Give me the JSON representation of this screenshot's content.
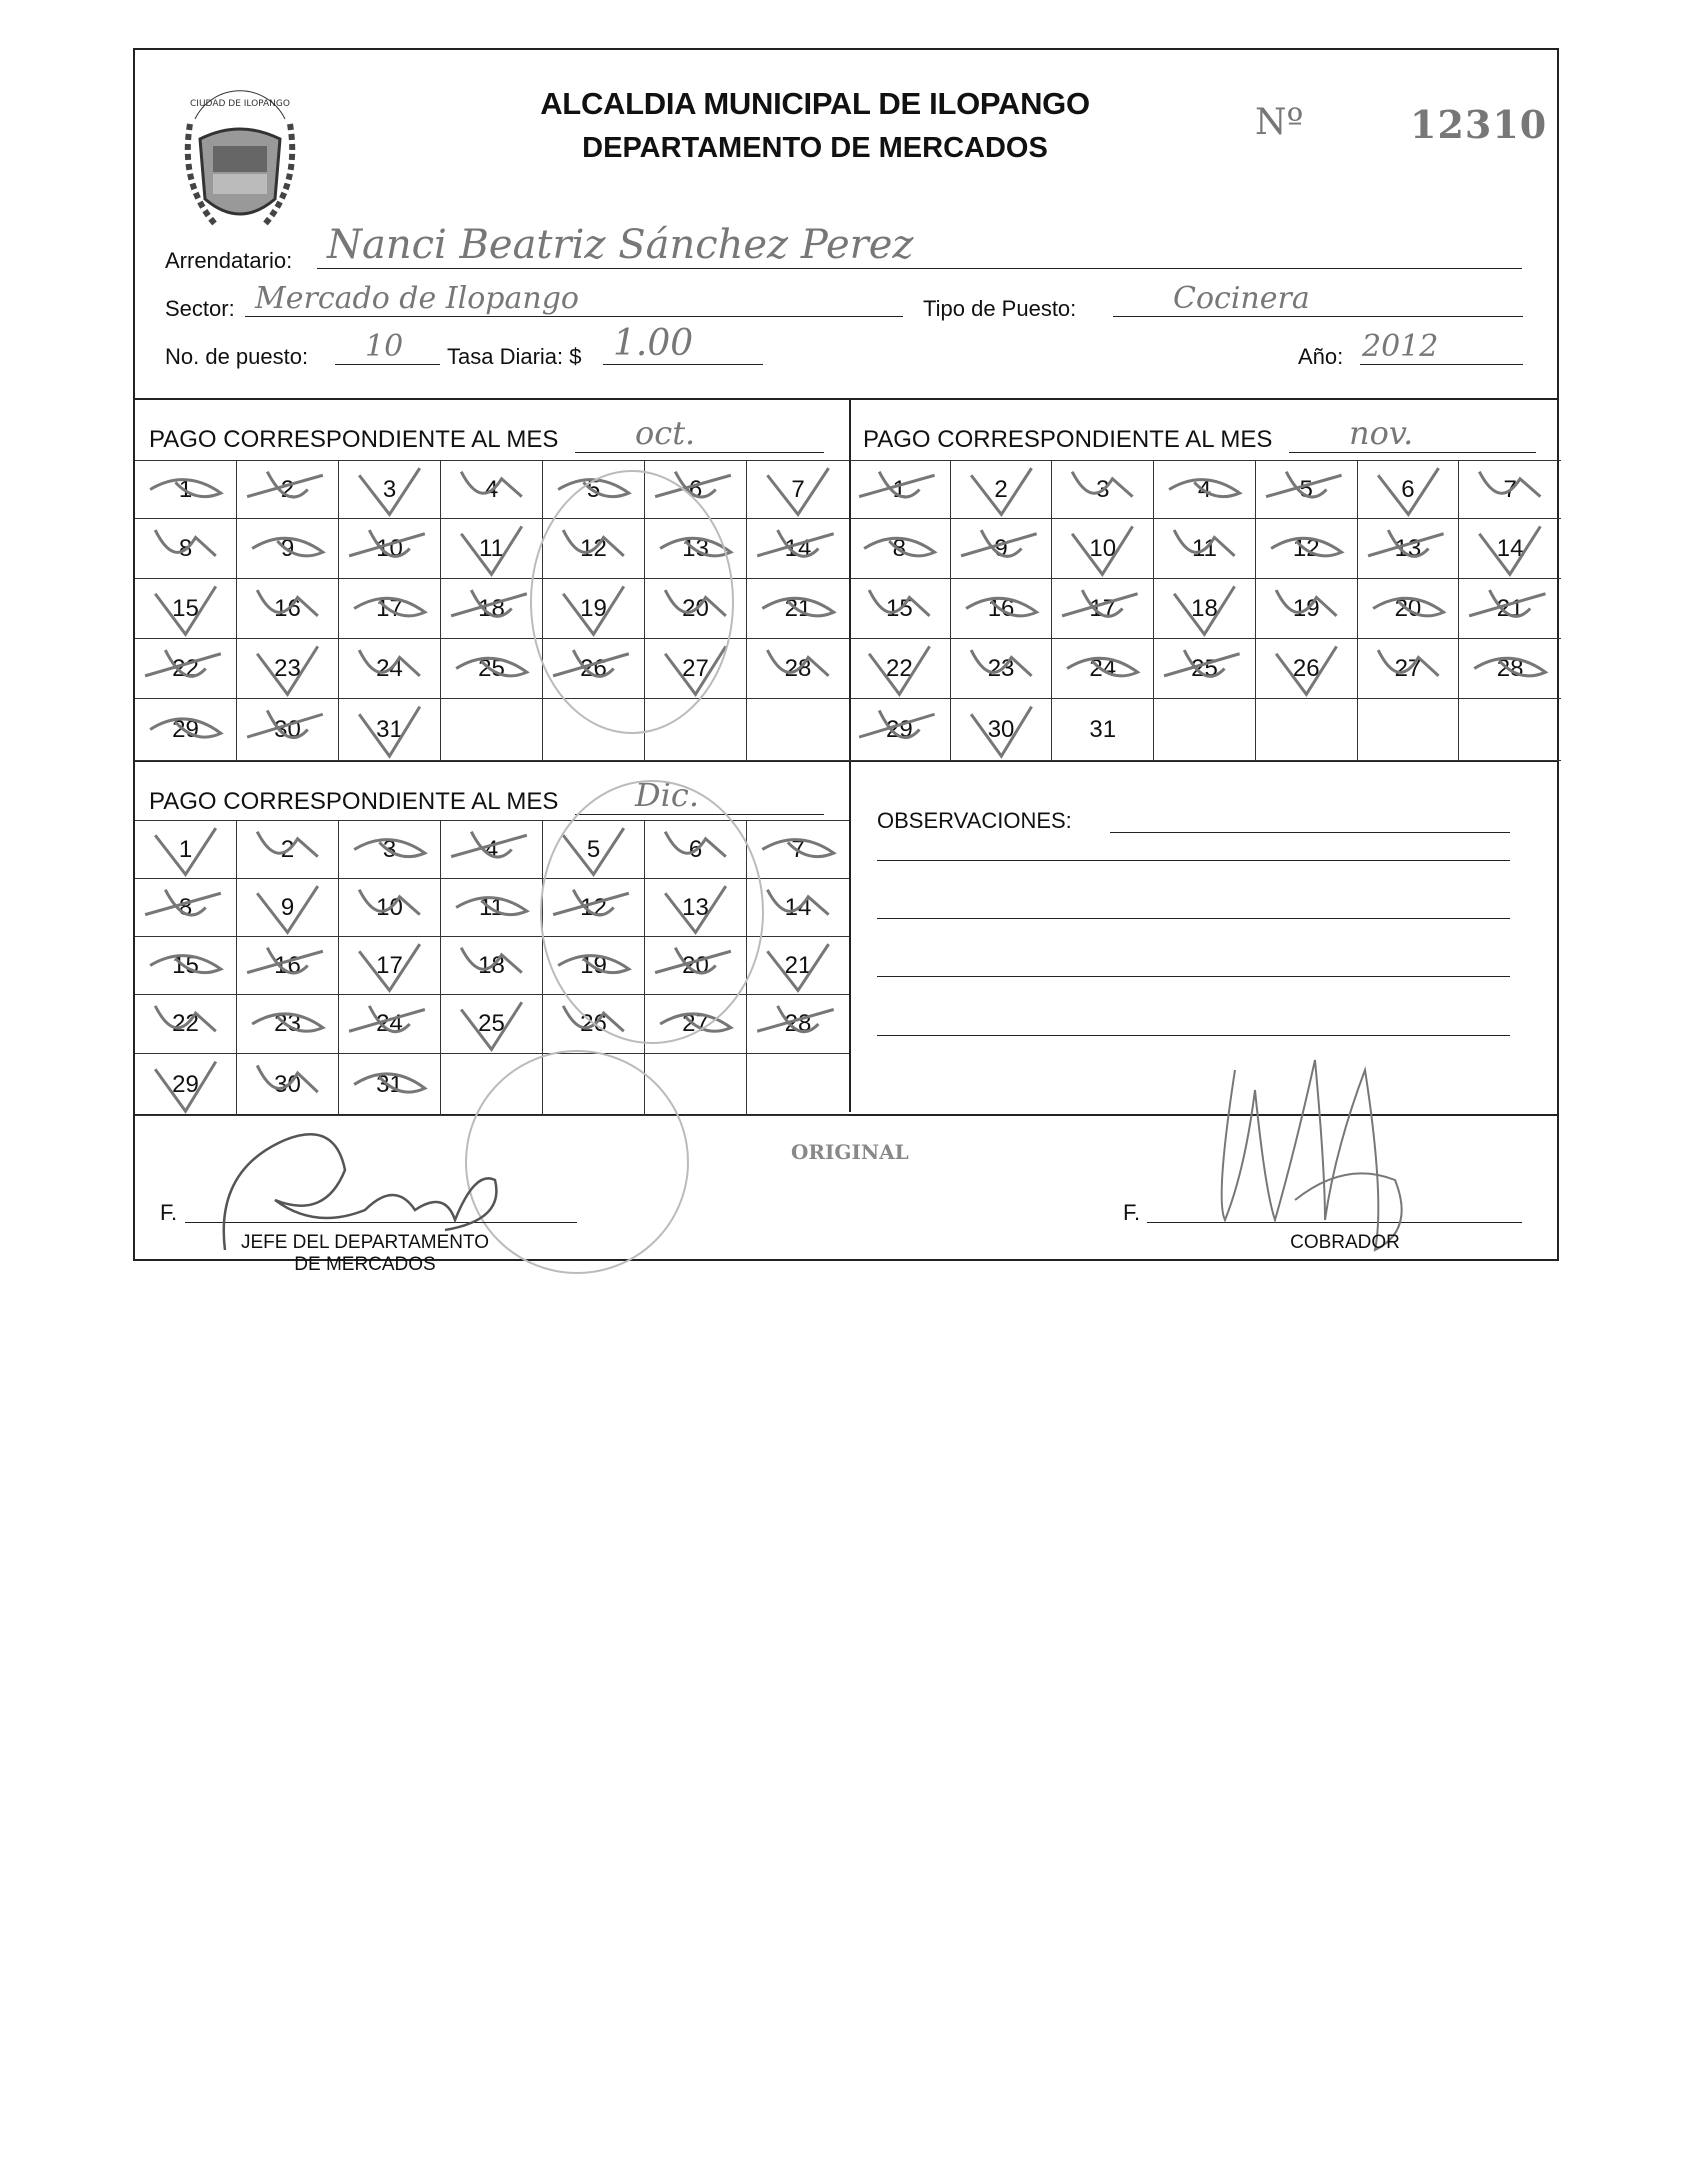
{
  "header": {
    "title": "ALCALDIA MUNICIPAL DE ILOPANGO",
    "subtitle": "DEPARTAMENTO DE MERCADOS",
    "number_label": "Nº",
    "number": "12310",
    "logo_text": "CIUDAD DE ILOPANGO"
  },
  "fields": {
    "arrendatario_label": "Arrendatario:",
    "arrendatario_value": "Nanci Beatriz Sánchez Perez",
    "sector_label": "Sector:",
    "sector_value": "Mercado de Ilopango",
    "tipo_label": "Tipo de Puesto:",
    "tipo_value": "Cocinera",
    "puesto_label": "No. de puesto:",
    "puesto_value": "10",
    "tasa_label": "Tasa Diaria: $",
    "tasa_value": "1.00",
    "anio_label": "Año:",
    "anio_value": "2012"
  },
  "months": [
    {
      "header": "PAGO CORRESPONDIENTE AL MES",
      "month": "oct.",
      "days": 31,
      "paid_days": [
        1,
        2,
        3,
        4,
        5,
        6,
        7,
        8,
        9,
        10,
        11,
        12,
        13,
        14,
        15,
        16,
        17,
        18,
        19,
        20,
        21,
        22,
        23,
        24,
        25,
        26,
        27,
        28,
        29,
        30,
        31
      ]
    },
    {
      "header": "PAGO CORRESPONDIENTE AL MES",
      "month": "nov.",
      "days": 31,
      "paid_days": [
        1,
        2,
        3,
        4,
        5,
        6,
        7,
        8,
        9,
        10,
        11,
        12,
        13,
        14,
        15,
        16,
        17,
        18,
        19,
        20,
        21,
        22,
        23,
        24,
        25,
        26,
        27,
        28,
        29,
        30
      ]
    },
    {
      "header": "PAGO CORRESPONDIENTE AL MES",
      "month": "Dic.",
      "days": 31,
      "paid_days": [
        1,
        2,
        3,
        4,
        5,
        6,
        7,
        8,
        9,
        10,
        11,
        12,
        13,
        14,
        15,
        16,
        17,
        18,
        19,
        20,
        21,
        22,
        23,
        24,
        25,
        26,
        27,
        28,
        29,
        30,
        31
      ]
    }
  ],
  "observaciones_label": "OBSERVACIONES:",
  "footer": {
    "original": "ORIGINAL",
    "f_left": "F.",
    "jefe_line1": "JEFE DEL DEPARTAMENTO",
    "jefe_line2": "DE MERCADOS",
    "f_right": "F.",
    "cobrador": "COBRADOR"
  },
  "colors": {
    "ink": "#222222",
    "handwriting": "#777777",
    "stamp": "#bbbbbb"
  }
}
